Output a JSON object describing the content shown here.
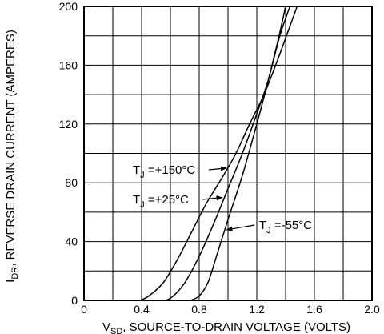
{
  "chart_data": {
    "type": "line",
    "xlabel": {
      "symbol": "V",
      "subscript": "SD",
      "text": ", SOURCE-TO-DRAIN VOLTAGE (VOLTS)"
    },
    "ylabel": {
      "symbol": "I",
      "subscript": "DR",
      "text": ", REVERSE DRAIN CURRENT (AMPERES)"
    },
    "xlim": [
      0,
      2.0
    ],
    "ylim": [
      0,
      200
    ],
    "x_ticks": [
      {
        "value": 0,
        "label": "0"
      },
      {
        "value": 0.4,
        "label": "0.4"
      },
      {
        "value": 0.8,
        "label": "0.8"
      },
      {
        "value": 1.2,
        "label": "1.2"
      },
      {
        "value": 1.6,
        "label": "1.6"
      },
      {
        "value": 2.0,
        "label": "2.0"
      }
    ],
    "y_ticks": [
      {
        "value": 0,
        "label": "0"
      },
      {
        "value": 40,
        "label": "40"
      },
      {
        "value": 80,
        "label": "80"
      },
      {
        "value": 120,
        "label": "120"
      },
      {
        "value": 160,
        "label": "160"
      },
      {
        "value": 200,
        "label": "200"
      }
    ],
    "grid_x_step": 0.2,
    "grid_y_step": 20,
    "grid": true,
    "series": [
      {
        "name": "+150°C",
        "annotation": {
          "prefix": "T",
          "sub": "J",
          "text": " =+150°C",
          "arrow_to": [
            1.0,
            90
          ]
        },
        "points": [
          [
            0.39,
            0
          ],
          [
            0.45,
            3
          ],
          [
            0.55,
            12
          ],
          [
            0.65,
            28
          ],
          [
            0.75,
            47
          ],
          [
            0.85,
            66
          ],
          [
            0.95,
            82
          ],
          [
            1.05,
            99
          ],
          [
            1.15,
            120
          ],
          [
            1.25,
            140
          ],
          [
            1.35,
            165
          ],
          [
            1.48,
            200
          ]
        ]
      },
      {
        "name": "+25°C",
        "annotation": {
          "prefix": "T",
          "sub": "J",
          "text": " =+25°C",
          "arrow_to": [
            0.97,
            70
          ]
        },
        "points": [
          [
            0.57,
            0
          ],
          [
            0.62,
            3
          ],
          [
            0.7,
            12
          ],
          [
            0.8,
            30
          ],
          [
            0.9,
            52
          ],
          [
            1.0,
            76
          ],
          [
            1.1,
            100
          ],
          [
            1.2,
            127
          ],
          [
            1.28,
            150
          ],
          [
            1.36,
            180
          ],
          [
            1.43,
            200
          ]
        ]
      },
      {
        "name": "-55°C",
        "annotation": {
          "prefix": "T",
          "sub": "J",
          "text": " =-55°C",
          "arrow_to": [
            0.98,
            48
          ]
        },
        "points": [
          [
            0.74,
            0
          ],
          [
            0.8,
            3
          ],
          [
            0.86,
            12
          ],
          [
            0.92,
            30
          ],
          [
            1.0,
            55
          ],
          [
            1.1,
            85
          ],
          [
            1.2,
            120
          ],
          [
            1.27,
            146
          ],
          [
            1.35,
            178
          ],
          [
            1.4,
            200
          ]
        ]
      }
    ]
  }
}
